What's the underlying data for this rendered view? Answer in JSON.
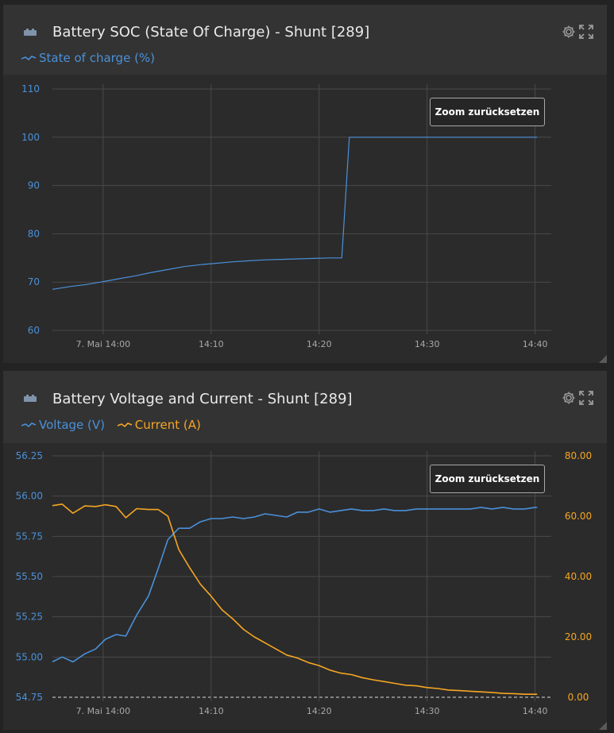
{
  "panels": [
    {
      "title": "Battery SOC (State Of Charge) - Shunt [289]",
      "legend": [
        {
          "label": "State of charge (%)",
          "color": "#4a90d9"
        }
      ],
      "zoom_reset_label": "Zoom zurücksetzen",
      "icons": [
        "battery-icon",
        "gear-icon",
        "expand-icon"
      ]
    },
    {
      "title": "Battery Voltage and Current - Shunt [289]",
      "legend": [
        {
          "label": "Voltage (V)",
          "color": "#4a90d9"
        },
        {
          "label": "Current (A)",
          "color": "#f5a623"
        }
      ],
      "zoom_reset_label": "Zoom zurücksetzen",
      "icons": [
        "battery-icon",
        "gear-icon",
        "expand-icon"
      ]
    }
  ],
  "chart_data": [
    {
      "type": "line",
      "x_ticks": [
        "7. Mai 14:00",
        "14:10",
        "14:20",
        "14:30",
        "14:40"
      ],
      "x_tick_minutes": [
        0,
        10,
        20,
        30,
        40
      ],
      "xlim_minutes": [
        -4.7,
        41.5
      ],
      "ylim": [
        60,
        110
      ],
      "y_ticks": [
        "60",
        "70",
        "80",
        "90",
        "100",
        "110"
      ],
      "grid": true,
      "series": [
        {
          "name": "State of charge (%)",
          "color": "#4a90d9",
          "points": [
            [
              -4.7,
              68.5
            ],
            [
              -3,
              69.1
            ],
            [
              -1.5,
              69.5
            ],
            [
              0,
              70.1
            ],
            [
              1.5,
              70.7
            ],
            [
              3,
              71.3
            ],
            [
              4.5,
              72
            ],
            [
              6,
              72.6
            ],
            [
              7.5,
              73.2
            ],
            [
              9,
              73.6
            ],
            [
              10.5,
              73.9
            ],
            [
              12,
              74.2
            ],
            [
              13.5,
              74.4
            ],
            [
              15,
              74.6
            ],
            [
              16.5,
              74.7
            ],
            [
              18,
              74.8
            ],
            [
              19.5,
              74.9
            ],
            [
              21,
              75
            ],
            [
              22.1,
              75
            ],
            [
              22.8,
              100
            ],
            [
              24,
              100
            ],
            [
              30,
              100
            ],
            [
              36,
              100
            ],
            [
              40.2,
              100
            ]
          ]
        }
      ]
    },
    {
      "type": "line",
      "x_ticks": [
        "7. Mai 14:00",
        "14:10",
        "14:20",
        "14:30",
        "14:40"
      ],
      "x_tick_minutes": [
        0,
        10,
        20,
        30,
        40
      ],
      "xlim_minutes": [
        -4.7,
        41.5
      ],
      "ylim_left": [
        54.75,
        56.25
      ],
      "y_ticks_left": [
        "54.75",
        "55.00",
        "55.25",
        "55.50",
        "55.75",
        "56.00",
        "56.25"
      ],
      "ylim_right": [
        0,
        80
      ],
      "y_ticks_right": [
        "0.00",
        "20.00",
        "40.00",
        "60.00",
        "80.00"
      ],
      "grid": true,
      "series": [
        {
          "name": "Voltage (V)",
          "axis": "left",
          "color": "#4a90d9",
          "points": [
            [
              -4.7,
              54.97
            ],
            [
              -3.8,
              55
            ],
            [
              -2.8,
              54.97
            ],
            [
              -1.7,
              55.02
            ],
            [
              -0.7,
              55.05
            ],
            [
              0.2,
              55.11
            ],
            [
              1.2,
              55.14
            ],
            [
              2.1,
              55.13
            ],
            [
              3.1,
              55.26
            ],
            [
              4.2,
              55.38
            ],
            [
              5.1,
              55.55
            ],
            [
              6,
              55.73
            ],
            [
              7,
              55.8
            ],
            [
              8,
              55.8
            ],
            [
              9,
              55.84
            ],
            [
              10,
              55.86
            ],
            [
              11,
              55.86
            ],
            [
              12,
              55.87
            ],
            [
              13,
              55.86
            ],
            [
              14,
              55.87
            ],
            [
              15,
              55.89
            ],
            [
              16,
              55.88
            ],
            [
              17,
              55.87
            ],
            [
              18,
              55.9
            ],
            [
              19,
              55.9
            ],
            [
              20,
              55.92
            ],
            [
              21,
              55.9
            ],
            [
              22,
              55.91
            ],
            [
              23,
              55.92
            ],
            [
              24,
              55.91
            ],
            [
              25,
              55.91
            ],
            [
              26,
              55.92
            ],
            [
              27,
              55.91
            ],
            [
              28,
              55.91
            ],
            [
              29,
              55.92
            ],
            [
              30,
              55.92
            ],
            [
              31,
              55.92
            ],
            [
              32,
              55.92
            ],
            [
              33,
              55.92
            ],
            [
              34,
              55.92
            ],
            [
              35,
              55.93
            ],
            [
              36,
              55.92
            ],
            [
              37,
              55.93
            ],
            [
              38,
              55.92
            ],
            [
              39,
              55.92
            ],
            [
              40,
              55.93
            ],
            [
              40.2,
              55.93
            ]
          ]
        },
        {
          "name": "Current (A)",
          "axis": "right",
          "color": "#f5a623",
          "points": [
            [
              -4.7,
              63.5
            ],
            [
              -3.8,
              64
            ],
            [
              -2.8,
              61
            ],
            [
              -1.7,
              63.4
            ],
            [
              -0.7,
              63.2
            ],
            [
              0.2,
              63.8
            ],
            [
              1.2,
              63.2
            ],
            [
              2.1,
              59.5
            ],
            [
              3.1,
              62.5
            ],
            [
              4.2,
              62.2
            ],
            [
              5.1,
              62.2
            ],
            [
              6,
              60
            ],
            [
              7,
              49
            ],
            [
              8,
              43
            ],
            [
              9,
              37.5
            ],
            [
              10,
              33.5
            ],
            [
              11,
              29
            ],
            [
              12,
              26
            ],
            [
              13,
              22.5
            ],
            [
              14,
              20
            ],
            [
              15,
              18
            ],
            [
              16,
              16
            ],
            [
              17,
              14
            ],
            [
              18,
              13
            ],
            [
              19,
              11.5
            ],
            [
              20,
              10.5
            ],
            [
              21,
              9
            ],
            [
              22,
              8
            ],
            [
              23,
              7.5
            ],
            [
              24,
              6.5
            ],
            [
              25,
              5.8
            ],
            [
              26,
              5.2
            ],
            [
              27,
              4.6
            ],
            [
              28,
              4
            ],
            [
              29,
              3.8
            ],
            [
              30,
              3.2
            ],
            [
              31,
              2.9
            ],
            [
              32,
              2.4
            ],
            [
              33,
              2.2
            ],
            [
              34,
              2
            ],
            [
              35,
              1.8
            ],
            [
              36,
              1.6
            ],
            [
              37,
              1.3
            ],
            [
              38,
              1.2
            ],
            [
              39,
              1
            ],
            [
              40,
              1
            ],
            [
              40.2,
              1
            ]
          ]
        }
      ]
    }
  ]
}
